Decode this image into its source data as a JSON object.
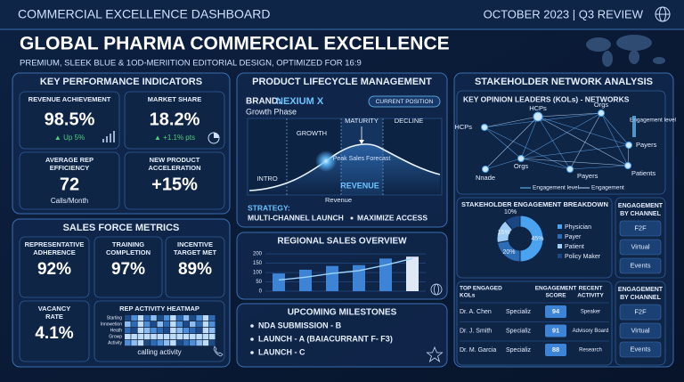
{
  "header": {
    "title": "COMMERCIAL EXCELLENCE DASHBOARD",
    "date": "OCTOBER 2023 | Q3 REVIEW"
  },
  "hero": {
    "title": "GLOBAL PHARMA COMMERCIAL EXCELLENCE",
    "subtitle": "PREMIUM, SLEEK BLUE & 1OD-MERIITION EDITORIAL DESIGN, OPTIMIZED FOR 16:9"
  },
  "kpi": {
    "title": "KEY PERFORMANCE INDICATORS",
    "cards": [
      {
        "label": [
          "REVENUE ACHIEVEMENT"
        ],
        "value": "98.5%",
        "delta": "▲ Up 5%"
      },
      {
        "label": [
          "MARKET SHARE"
        ],
        "value": "18.2%",
        "delta": "▲ +1.1% pts"
      },
      {
        "label": [
          "AVERAGE REP",
          "EFFICIENCY"
        ],
        "value": "72",
        "note": "Calls/Month"
      },
      {
        "label": [
          "NEW PRODUCT",
          "ACCELERATION"
        ],
        "value": "+15%"
      }
    ]
  },
  "sales_force": {
    "title": "SALES FORCE METRICS",
    "cards": [
      {
        "label": [
          "REPRESENTATIVE",
          "ADHERENCE"
        ],
        "value": "92%"
      },
      {
        "label": [
          "TRAINING",
          "COMPLETION"
        ],
        "value": "97%"
      },
      {
        "label": [
          "INCENTIVE",
          "TARGET MET"
        ],
        "value": "89%"
      },
      {
        "label": [
          "VACANCY",
          "RATE"
        ],
        "value": "4.1%"
      }
    ],
    "heatmap": {
      "title": "REP ACTIVITY HEATMAP",
      "rows": [
        "Starting",
        "Innowetion",
        "Heath",
        "Growp",
        "Activity"
      ],
      "caption": "calling activity"
    }
  },
  "lifecycle": {
    "title": "PRODUCT LIFECYCLE MANAGEMENT",
    "brand_label": "BRAND:",
    "brand": "NEXIUM X",
    "phase": "Growth Phase",
    "badge": "CURRENT POSITION",
    "stages": [
      "INTRO",
      "GROWTH",
      "MATURITY",
      "DECLINE"
    ],
    "peak": "Peak Sales Forecast",
    "revenue_tag": "REVENUE",
    "axis": "Revenue",
    "strategy_label": "STRATEGY:",
    "strategy": [
      "MULTI-CHANNEL LAUNCH",
      "MAXIMIZE ACCESS"
    ]
  },
  "regional": {
    "title": "REGIONAL SALES OVERVIEW",
    "type": "bar",
    "ylim": [
      0,
      210
    ],
    "yticks": [
      0,
      50,
      100,
      150,
      200
    ],
    "values": [
      95,
      115,
      135,
      140,
      175,
      185
    ],
    "trend": [
      60,
      75,
      95,
      110,
      140,
      175
    ]
  },
  "milestones": {
    "title": "UPCOMING MILESTONES",
    "items": [
      "NDA SUBMISSION - B",
      "LAUNCH - A (BAIACURRANT F- F3)",
      "LAUNCH - C"
    ]
  },
  "stakeholder": {
    "title": "STAKEHOLDER NETWORK ANALYSIS",
    "network": {
      "title": "KEY OPINION LEADERS (KOLs) - NETWORKS",
      "nodes": [
        "HCPs",
        "HCPs",
        "Orgs",
        "Orgs",
        "Payers",
        "Patients",
        "Nnade",
        "Payers"
      ],
      "scale_label": "Engagement level",
      "legend": [
        "Engagement level",
        "Engagement"
      ]
    },
    "breakdown": {
      "title": "STAKEHOLDER ENGAGEMENT BREAKDOWN",
      "type": "pie",
      "categories": [
        "Physician",
        "Payer",
        "Patient",
        "Policy Maker"
      ],
      "values": [
        45,
        20,
        15,
        10
      ],
      "value_labels": [
        "45%",
        "20%",
        "15%",
        "10%"
      ],
      "colors": [
        "#4aa3f0",
        "#2c6cb5",
        "#9fcdf6",
        "#1b4684"
      ]
    },
    "channels": [
      {
        "title": [
          "ENGAGEMENT",
          "BY CHANNEL"
        ],
        "items": [
          "F2F",
          "Virtual",
          "Events"
        ]
      },
      {
        "title": [
          "ENGAGEMENT",
          "BY CHANNEL"
        ],
        "items": [
          "F2F",
          "Virtual",
          "Events"
        ]
      }
    ],
    "kols": {
      "headers": [
        [
          "TOP ENGAGED",
          "KOLs"
        ],
        [
          "ENGAGEMENT",
          "SCORE"
        ],
        [
          "RECENT",
          "ACTIVITY"
        ]
      ],
      "rows": [
        [
          "Dr. A. Chen",
          "Specializ",
          "94",
          "Speaker"
        ],
        [
          "Dr. J. Smith",
          "Specializ",
          "91",
          "Advisory Board"
        ],
        [
          "Dr. M. Garcia",
          "Specializ",
          "88",
          "Research"
        ]
      ]
    }
  }
}
